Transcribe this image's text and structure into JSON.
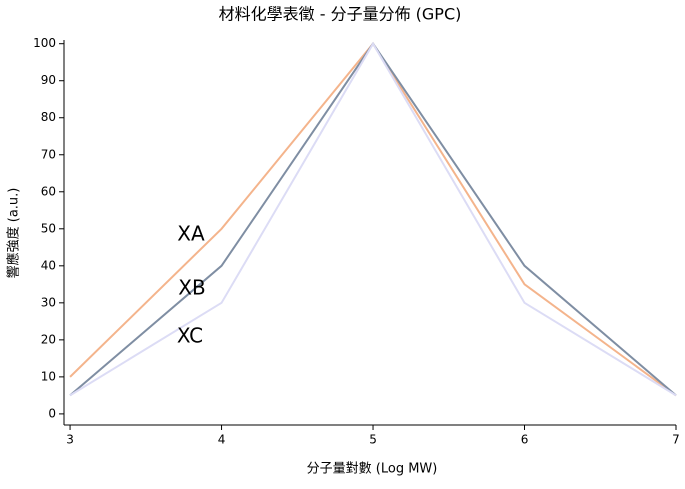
{
  "chart_data": {
    "type": "line",
    "title": "材料化學表徵 - 分子量分佈 (GPC)",
    "x_label": "分子量對數 (Log MW)",
    "y_label": "響應強度 (a.u.)",
    "x": [
      3,
      4,
      5,
      6,
      7
    ],
    "series": [
      {
        "name": "XA",
        "color": "#f4b48c",
        "values": [
          10,
          50,
          100,
          35,
          5
        ]
      },
      {
        "name": "XB",
        "color": "#7f8ea3",
        "values": [
          5,
          40,
          100,
          40,
          5
        ]
      },
      {
        "name": "XC",
        "color": "#dcdcf5",
        "values": [
          5,
          30,
          100,
          30,
          5
        ]
      }
    ],
    "xlim": [
      2.96,
      7
    ],
    "ylim": [
      -3,
      101
    ],
    "xticks": [
      3,
      4,
      5,
      6,
      7
    ],
    "yticks": [
      0,
      10,
      20,
      30,
      40,
      50,
      60,
      70,
      80,
      90,
      100
    ]
  }
}
